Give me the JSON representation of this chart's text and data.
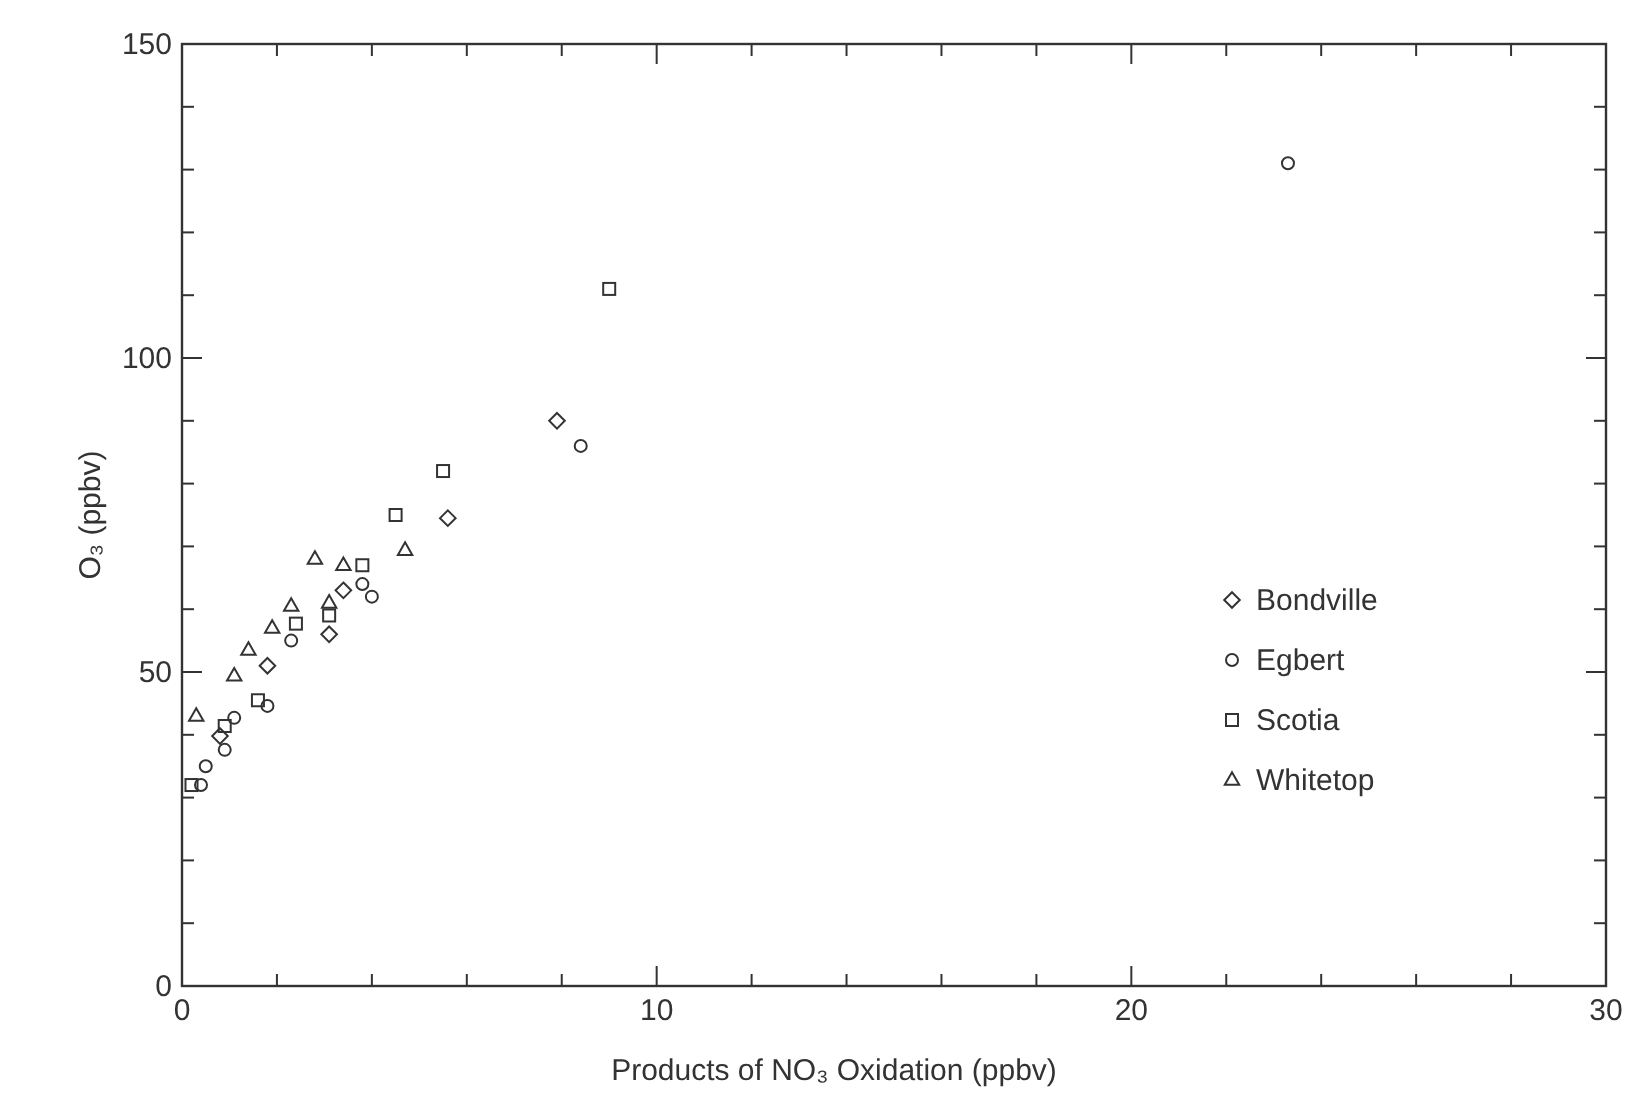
{
  "chart_data": {
    "type": "scatter",
    "xlabel": "Products of NO₃ Oxidation (ppbv)",
    "ylabel": "O₃ (ppbv)",
    "xlim": [
      0,
      30
    ],
    "ylim": [
      0,
      150
    ],
    "xticks": [
      0,
      {
        "value": 2,
        "label": null
      },
      {
        "value": 4,
        "label": null
      },
      {
        "value": 6,
        "label": null
      },
      {
        "value": 8,
        "label": null
      },
      10,
      {
        "value": 12,
        "label": null
      },
      {
        "value": 14,
        "label": null
      },
      {
        "value": 16,
        "label": null
      },
      {
        "value": 18,
        "label": null
      },
      20,
      {
        "value": 22,
        "label": null
      },
      {
        "value": 24,
        "label": null
      },
      {
        "value": 26,
        "label": null
      },
      {
        "value": 28,
        "label": null
      },
      30
    ],
    "yticks": [
      0,
      {
        "value": 10,
        "label": null
      },
      {
        "value": 20,
        "label": null
      },
      {
        "value": 30,
        "label": null
      },
      {
        "value": 40,
        "label": null
      },
      50,
      {
        "value": 60,
        "label": null
      },
      {
        "value": 70,
        "label": null
      },
      {
        "value": 80,
        "label": null
      },
      {
        "value": 90,
        "label": null
      },
      100,
      {
        "value": 110,
        "label": null
      },
      {
        "value": 120,
        "label": null
      },
      {
        "value": 130,
        "label": null
      },
      {
        "value": 140,
        "label": null
      },
      150
    ],
    "grid": false,
    "legend": "right",
    "series": [
      {
        "name": "Bondville",
        "color": "#333333",
        "marker": "diamond",
        "x": [
          7.9,
          5.6,
          3.4,
          3.1,
          1.8,
          0.8
        ],
        "values": [
          90,
          74.5,
          63,
          56,
          51,
          39.8
        ]
      },
      {
        "name": "Egbert",
        "color": "#333333",
        "marker": "circle",
        "x": [
          23.3,
          8.4,
          3.8,
          4.0,
          2.3,
          1.8,
          1.1,
          0.9,
          0.5,
          0.4
        ],
        "values": [
          131,
          86,
          64,
          62,
          55,
          44.6,
          42.7,
          37.6,
          35,
          32
        ]
      },
      {
        "name": "Scotia",
        "color": "#333333",
        "marker": "square",
        "x": [
          9.0,
          5.5,
          4.5,
          3.8,
          3.1,
          2.4,
          1.6,
          0.9,
          0.2
        ],
        "values": [
          111,
          82,
          75,
          67,
          59,
          57.7,
          45.5,
          41.4,
          32
        ]
      },
      {
        "name": "Whitetop",
        "color": "#333333",
        "marker": "triangle",
        "x": [
          4.7,
          2.8,
          3.4,
          3.1,
          2.3,
          1.9,
          1.4,
          1.1,
          0.3
        ],
        "values": [
          69.4,
          68,
          67,
          61,
          60.5,
          57,
          53.5,
          49.4,
          43
        ]
      }
    ]
  }
}
